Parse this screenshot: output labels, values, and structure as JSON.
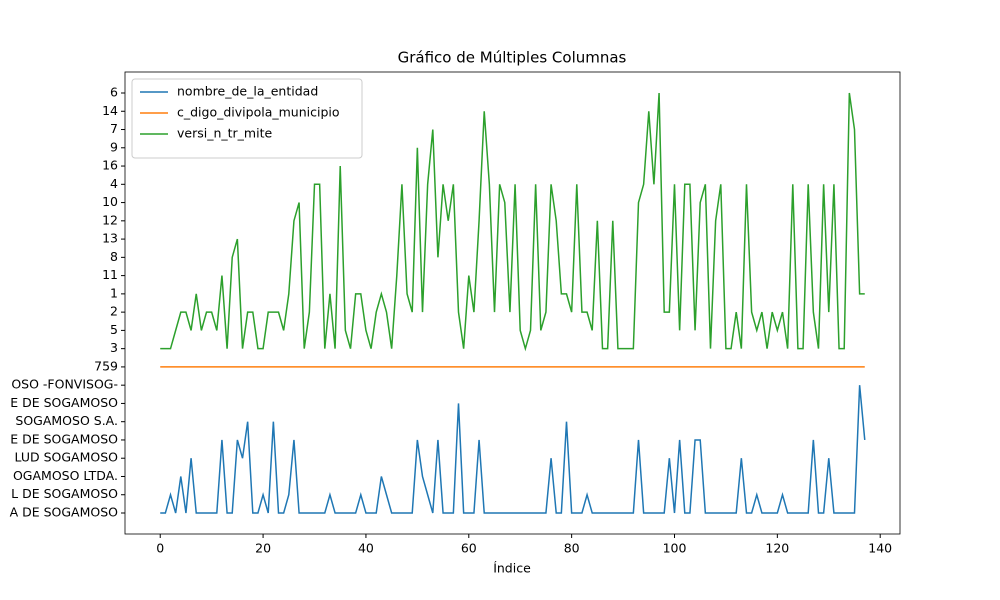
{
  "chart_data": {
    "type": "line",
    "title": "Gráfico de Múltiples Columnas",
    "x_label": "Índice",
    "x": [
      0,
      1,
      2,
      3,
      4,
      5,
      6,
      7,
      8,
      9,
      10,
      11,
      12,
      13,
      14,
      15,
      16,
      17,
      18,
      19,
      20,
      21,
      22,
      23,
      24,
      25,
      26,
      27,
      28,
      29,
      30,
      31,
      32,
      33,
      34,
      35,
      36,
      37,
      38,
      39,
      40,
      41,
      42,
      43,
      44,
      45,
      46,
      47,
      48,
      49,
      50,
      51,
      52,
      53,
      54,
      55,
      56,
      57,
      58,
      59,
      60,
      61,
      62,
      63,
      64,
      65,
      66,
      67,
      68,
      69,
      70,
      71,
      72,
      73,
      74,
      75,
      76,
      77,
      78,
      79,
      80,
      81,
      82,
      83,
      84,
      85,
      86,
      87,
      88,
      89,
      90,
      91,
      92,
      93,
      94,
      95,
      96,
      97,
      98,
      99,
      100,
      101,
      102,
      103,
      104,
      105,
      106,
      107,
      108,
      109,
      110,
      111,
      112,
      113,
      114,
      115,
      116,
      117,
      118,
      119,
      120,
      121,
      122,
      123,
      124,
      125,
      126,
      127,
      128,
      129,
      130,
      131,
      132,
      133,
      134,
      135,
      136,
      137
    ],
    "series": [
      {
        "name": "nombre_de_la_entidad",
        "color": "#1f77b4",
        "values": [
          0,
          0,
          1,
          0,
          2,
          0,
          3,
          0,
          0,
          0,
          0,
          0,
          4,
          0,
          0,
          4,
          3,
          5,
          0,
          0,
          1,
          0,
          5,
          0,
          0,
          1,
          4,
          0,
          0,
          0,
          0,
          0,
          0,
          1,
          0,
          0,
          0,
          0,
          0,
          1,
          0,
          0,
          0,
          2,
          1,
          0,
          0,
          0,
          0,
          0,
          4,
          2,
          1,
          0,
          4,
          0,
          0,
          0,
          6,
          0,
          0,
          0,
          4,
          0,
          0,
          0,
          0,
          0,
          0,
          0,
          0,
          0,
          0,
          0,
          0,
          0,
          3,
          0,
          0,
          5,
          0,
          0,
          0,
          1,
          0,
          0,
          0,
          0,
          0,
          0,
          0,
          0,
          0,
          4,
          0,
          0,
          0,
          0,
          0,
          3,
          0,
          4,
          0,
          0,
          4,
          4,
          0,
          0,
          0,
          0,
          0,
          0,
          0,
          3,
          0,
          0,
          1,
          0,
          0,
          0,
          0,
          1,
          0,
          0,
          0,
          0,
          0,
          4,
          0,
          0,
          3,
          0,
          0,
          0,
          0,
          0,
          7,
          4
        ]
      },
      {
        "name": "c_digo_divipola_municipio",
        "color": "#ff7f0e",
        "values": [
          8,
          8,
          8,
          8,
          8,
          8,
          8,
          8,
          8,
          8,
          8,
          8,
          8,
          8,
          8,
          8,
          8,
          8,
          8,
          8,
          8,
          8,
          8,
          8,
          8,
          8,
          8,
          8,
          8,
          8,
          8,
          8,
          8,
          8,
          8,
          8,
          8,
          8,
          8,
          8,
          8,
          8,
          8,
          8,
          8,
          8,
          8,
          8,
          8,
          8,
          8,
          8,
          8,
          8,
          8,
          8,
          8,
          8,
          8,
          8,
          8,
          8,
          8,
          8,
          8,
          8,
          8,
          8,
          8,
          8,
          8,
          8,
          8,
          8,
          8,
          8,
          8,
          8,
          8,
          8,
          8,
          8,
          8,
          8,
          8,
          8,
          8,
          8,
          8,
          8,
          8,
          8,
          8,
          8,
          8,
          8,
          8,
          8,
          8,
          8,
          8,
          8,
          8,
          8,
          8,
          8,
          8,
          8,
          8,
          8,
          8,
          8,
          8,
          8,
          8,
          8,
          8,
          8,
          8,
          8,
          8,
          8,
          8,
          8,
          8,
          8,
          8,
          8,
          8,
          8,
          8,
          8,
          8,
          8,
          8,
          8,
          8,
          8
        ]
      },
      {
        "name": "versi_n_tr_mite",
        "color": "#2ca02c",
        "values": [
          9,
          9,
          9,
          10,
          11,
          11,
          10,
          12,
          10,
          11,
          11,
          10,
          13,
          9,
          14,
          15,
          9,
          11,
          11,
          9,
          9,
          11,
          11,
          11,
          10,
          12,
          16,
          17,
          9,
          11,
          18,
          18,
          9,
          12,
          9,
          19,
          10,
          9,
          12,
          12,
          10,
          9,
          11,
          12,
          11,
          9,
          13,
          18,
          12,
          11,
          20,
          11,
          18,
          21,
          14,
          18,
          16,
          18,
          11,
          9,
          13,
          11,
          16,
          22,
          18,
          11,
          18,
          17,
          11,
          18,
          10,
          9,
          10,
          18,
          10,
          11,
          18,
          16,
          12,
          12,
          11,
          18,
          11,
          11,
          10,
          16,
          9,
          9,
          16,
          9,
          9,
          9,
          9,
          17,
          18,
          22,
          18,
          23,
          11,
          11,
          18,
          10,
          18,
          18,
          10,
          17,
          18,
          9,
          16,
          18,
          9,
          9,
          11,
          9,
          18,
          11,
          10,
          11,
          9,
          11,
          10,
          11,
          9,
          18,
          9,
          9,
          18,
          11,
          9,
          18,
          11,
          18,
          9,
          9,
          23,
          21,
          12,
          12
        ]
      }
    ],
    "xlim": [
      -6.85,
      143.85
    ],
    "xticks": [
      0,
      20,
      40,
      60,
      80,
      100,
      120,
      140
    ],
    "ylim": [
      -1.15,
      24.15
    ],
    "yticks": [
      {
        "value": 0,
        "label": "A DE SOGAMOSO"
      },
      {
        "value": 1,
        "label": "L DE SOGAMOSO"
      },
      {
        "value": 2,
        "label": "OGAMOSO LTDA."
      },
      {
        "value": 3,
        "label": "LUD SOGAMOSO"
      },
      {
        "value": 4,
        "label": "E DE SOGAMOSO"
      },
      {
        "value": 5,
        "label": "SOGAMOSO S.A."
      },
      {
        "value": 6,
        "label": "E DE SOGAMOSO"
      },
      {
        "value": 7,
        "label": "OSO -FONVISOG-"
      },
      {
        "value": 8,
        "label": "759"
      },
      {
        "value": 9,
        "label": "3"
      },
      {
        "value": 10,
        "label": "5"
      },
      {
        "value": 11,
        "label": "2"
      },
      {
        "value": 12,
        "label": "1"
      },
      {
        "value": 13,
        "label": "11"
      },
      {
        "value": 14,
        "label": "8"
      },
      {
        "value": 15,
        "label": "13"
      },
      {
        "value": 16,
        "label": "12"
      },
      {
        "value": 17,
        "label": "10"
      },
      {
        "value": 18,
        "label": "4"
      },
      {
        "value": 19,
        "label": "16"
      },
      {
        "value": 20,
        "label": "9"
      },
      {
        "value": 21,
        "label": "7"
      },
      {
        "value": 22,
        "label": "14"
      },
      {
        "value": 23,
        "label": "6"
      }
    ],
    "legend": "upper left",
    "grid": false
  }
}
